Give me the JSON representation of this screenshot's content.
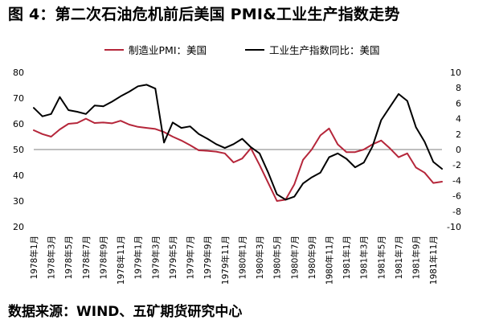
{
  "page": {
    "title": "图 4：第二次石油危机前后美国 PMI&工业生产指数走势",
    "source": "数据来源：WIND、五矿期货研究中心"
  },
  "colors": {
    "pmi": "#b5263a",
    "ip": "#000000",
    "axis": "#7f7f7f",
    "text": "#000000"
  },
  "chart_data": {
    "type": "line",
    "title": "图 4：第二次石油危机前后美国 PMI&工业生产指数走势",
    "xlabel": "",
    "ylabel": "",
    "ylabel_right": "",
    "ylim": [
      20,
      80
    ],
    "yticks": [
      20,
      30,
      40,
      50,
      60,
      70,
      80
    ],
    "ylim_right": [
      -10,
      10
    ],
    "yticks_right": [
      -10,
      -8,
      -6,
      -4,
      -2,
      0,
      2,
      4,
      6,
      8,
      10
    ],
    "legend": "top",
    "grid": false,
    "x": [
      "1978年1月",
      "1978年2月",
      "1978年3月",
      "1978年4月",
      "1978年5月",
      "1978年6月",
      "1978年7月",
      "1978年8月",
      "1978年9月",
      "1978年10月",
      "1978年11月",
      "1978年12月",
      "1979年1月",
      "1979年2月",
      "1979年3月",
      "1979年4月",
      "1979年5月",
      "1979年6月",
      "1979年7月",
      "1979年8月",
      "1979年9月",
      "1979年10月",
      "1979年11月",
      "1979年12月",
      "1980年1月",
      "1980年2月",
      "1980年3月",
      "1980年4月",
      "1980年5月",
      "1980年6月",
      "1980年7月",
      "1980年8月",
      "1980年9月",
      "1980年10月",
      "1980年11月",
      "1980年12月",
      "1981年1月",
      "1981年2月",
      "1981年3月",
      "1981年4月",
      "1981年5月",
      "1981年6月",
      "1981年7月",
      "1981年8月",
      "1981年9月",
      "1981年10月",
      "1981年11月",
      "1981年12月"
    ],
    "xtick_labels": [
      "1978年1月",
      "1978年3月",
      "1978年5月",
      "1978年7月",
      "1978年9月",
      "1978年11月",
      "1979年1月",
      "1979年3月",
      "1979年5月",
      "1979年7月",
      "1979年9月",
      "1979年11月",
      "1980年1月",
      "1980年3月",
      "1980年5月",
      "1980年7月",
      "1980年9月",
      "1980年11月",
      "1981年1月",
      "1981年3月",
      "1981年5月",
      "1981年7月",
      "1981年9月",
      "1981年11月"
    ],
    "series": [
      {
        "name": "制造业PMI：美国",
        "axis": "left",
        "values": [
          57.5,
          56.0,
          55.0,
          57.8,
          60.0,
          60.3,
          62.0,
          60.3,
          60.5,
          60.2,
          61.2,
          59.7,
          58.8,
          58.4,
          58.0,
          56.8,
          55.0,
          53.5,
          51.7,
          49.7,
          49.5,
          49.2,
          48.5,
          45.0,
          46.5,
          50.5,
          44.0,
          37.0,
          30.0,
          30.5,
          36.5,
          46.0,
          50.0,
          55.5,
          58.2,
          52.0,
          49.0,
          49.0,
          50.0,
          52.0,
          53.5,
          50.5,
          47.0,
          48.5,
          43.0,
          41.0,
          37.0,
          37.5
        ]
      },
      {
        "name": "工业生产指数同比：美国",
        "axis": "right",
        "values": [
          5.4,
          4.3,
          4.6,
          6.8,
          5.1,
          4.9,
          4.6,
          5.7,
          5.6,
          6.2,
          6.9,
          7.5,
          8.2,
          8.4,
          7.9,
          0.9,
          3.5,
          2.8,
          3.0,
          2.0,
          1.4,
          0.7,
          0.2,
          0.7,
          1.4,
          0.3,
          -0.5,
          -3.0,
          -5.8,
          -6.5,
          -6.1,
          -4.4,
          -3.6,
          -3.0,
          -1.0,
          -0.5,
          -1.2,
          -2.3,
          -1.7,
          0.4,
          3.8,
          5.5,
          7.2,
          6.3,
          2.9,
          1.0,
          -1.6,
          -2.5
        ]
      }
    ]
  }
}
